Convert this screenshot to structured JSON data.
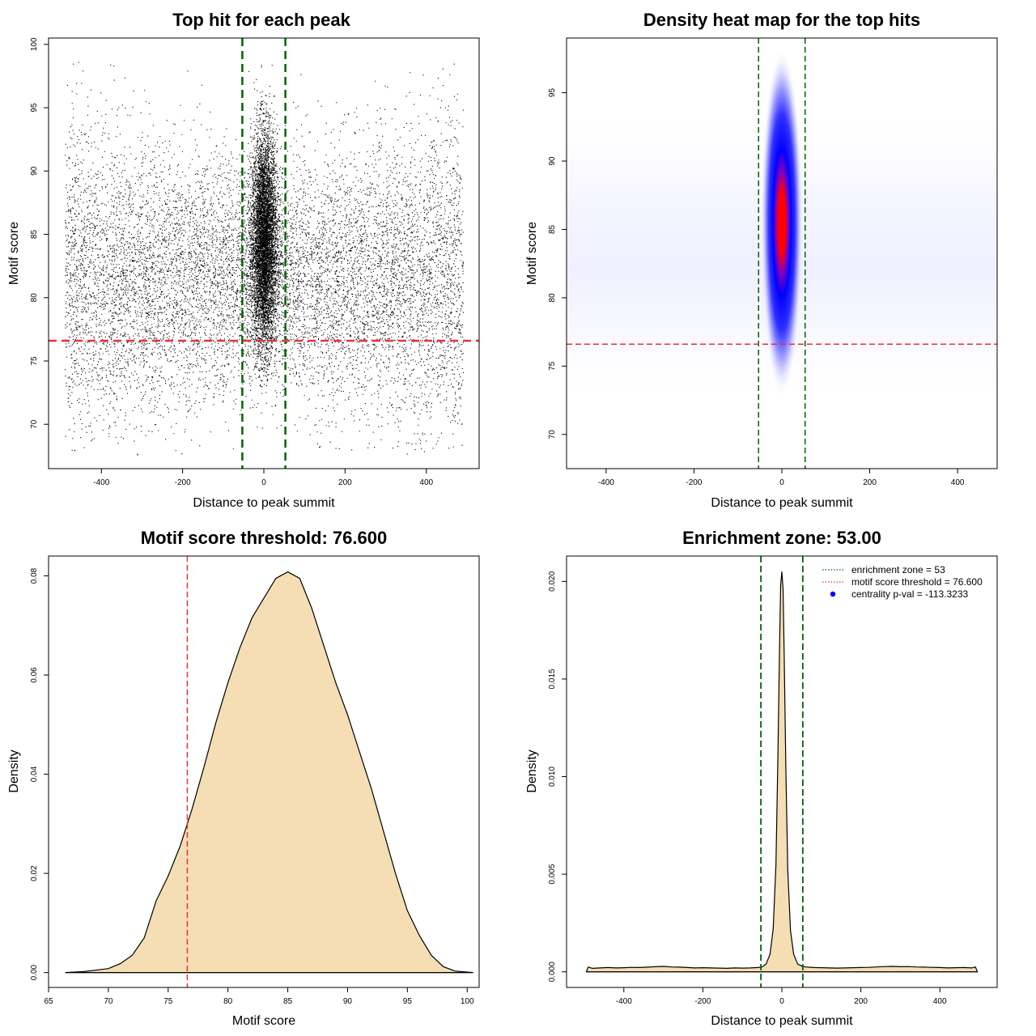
{
  "chart_data": [
    {
      "type": "scatter",
      "title": "Top hit for each peak",
      "xlabel": "Distance to peak summit",
      "ylabel": "Motif score",
      "xlim": [
        -530,
        530
      ],
      "ylim": [
        66.5,
        100.5
      ],
      "xticks": [
        -400,
        -200,
        0,
        200,
        400
      ],
      "yticks": [
        70,
        75,
        80,
        85,
        90,
        95,
        100
      ],
      "vlines": [
        -53,
        53
      ],
      "hline": 76.6,
      "points": {
        "core": {
          "x_center": 0,
          "x_sd": 16,
          "y_center": 84.5,
          "y_sd": 4.2,
          "y_min": 73,
          "y_max": 99
        },
        "background": {
          "x_range": [
            -490,
            490
          ],
          "y_center": 81.5,
          "y_sd": 5.5,
          "y_min": 67.5,
          "y_max": 99
        }
      }
    },
    {
      "type": "heatmap",
      "title": "Density heat map for the top hits",
      "xlabel": "Distance to peak summit",
      "ylabel": "Motif score",
      "xlim": [
        -490,
        490
      ],
      "ylim": [
        67.5,
        99
      ],
      "xticks": [
        -400,
        -200,
        0,
        200,
        400
      ],
      "yticks": [
        70,
        75,
        80,
        85,
        90,
        95
      ],
      "vlines": [
        -53,
        53
      ],
      "hline": 76.6,
      "peak": {
        "x": 0,
        "y": 85.5
      }
    },
    {
      "type": "area",
      "title": "Motif score threshold: 76.600",
      "xlabel": "Motif score",
      "ylabel": "Density",
      "xlim": [
        65,
        101
      ],
      "ylim": [
        -0.003,
        0.084
      ],
      "xticks": [
        65,
        70,
        75,
        80,
        85,
        90,
        95,
        100
      ],
      "yticks": [
        0.0,
        0.02,
        0.04,
        0.06,
        0.08
      ],
      "ytick_labels": [
        "0.00",
        "0.02",
        "0.04",
        "0.06",
        "0.08"
      ],
      "vline": 76.6,
      "fill": "#f5deb3",
      "x": [
        66.4,
        68,
        70,
        71,
        72,
        73,
        74,
        75,
        76,
        77,
        78,
        79,
        80,
        81,
        82,
        83,
        84,
        85,
        86,
        87,
        88,
        89,
        90,
        91,
        92,
        93,
        94,
        95,
        96,
        97,
        98,
        99,
        100.5
      ],
      "y": [
        0.0,
        0.0002,
        0.0008,
        0.0018,
        0.0035,
        0.007,
        0.0145,
        0.0195,
        0.0255,
        0.033,
        0.0415,
        0.0505,
        0.0585,
        0.0655,
        0.0715,
        0.0755,
        0.0795,
        0.0808,
        0.0795,
        0.0735,
        0.066,
        0.0585,
        0.052,
        0.0445,
        0.037,
        0.0285,
        0.02,
        0.0125,
        0.0075,
        0.0035,
        0.0012,
        0.0003,
        0.0
      ]
    },
    {
      "type": "area",
      "title": "Enrichment zone: 53.00",
      "xlabel": "Distance to peak summit",
      "ylabel": "Density",
      "xlim": [
        -545,
        545
      ],
      "ylim": [
        -0.0008,
        0.0213
      ],
      "xticks": [
        -400,
        -200,
        0,
        200,
        400
      ],
      "yticks": [
        0.0,
        0.005,
        0.01,
        0.015,
        0.02
      ],
      "ytick_labels": [
        "0.000",
        "0.005",
        "0.010",
        "0.015",
        "0.020"
      ],
      "vlines": [
        -53,
        53
      ],
      "fill": "#f5deb3",
      "x": [
        -495,
        -490,
        -480,
        -460,
        -440,
        -420,
        -400,
        -380,
        -360,
        -340,
        -320,
        -300,
        -280,
        -260,
        -240,
        -220,
        -200,
        -180,
        -160,
        -140,
        -120,
        -100,
        -80,
        -60,
        -50,
        -40,
        -30,
        -22,
        -15,
        -10,
        -6,
        -3,
        0,
        3,
        6,
        10,
        15,
        22,
        30,
        40,
        50,
        60,
        80,
        100,
        120,
        140,
        160,
        180,
        200,
        220,
        240,
        260,
        280,
        300,
        320,
        340,
        360,
        380,
        400,
        420,
        440,
        460,
        480,
        490,
        495
      ],
      "y": [
        0.0,
        0.00025,
        0.00018,
        0.0002,
        0.00022,
        0.0002,
        0.00021,
        0.00023,
        0.00022,
        0.00024,
        0.00026,
        0.00028,
        0.00025,
        0.00024,
        0.00022,
        0.0002,
        0.00021,
        0.0002,
        0.00019,
        0.00018,
        0.0002,
        0.00019,
        0.0002,
        0.00022,
        0.00025,
        0.0004,
        0.0009,
        0.0022,
        0.0055,
        0.011,
        0.0165,
        0.0198,
        0.0205,
        0.0196,
        0.0162,
        0.0105,
        0.0052,
        0.0021,
        0.0009,
        0.0004,
        0.0003,
        0.00025,
        0.00022,
        0.00021,
        0.0002,
        0.00019,
        0.0002,
        0.00021,
        0.00022,
        0.00023,
        0.00025,
        0.00027,
        0.00028,
        0.00026,
        0.00027,
        0.00025,
        0.00024,
        0.00023,
        0.00022,
        0.0002,
        0.00021,
        0.00022,
        0.0002,
        0.00025,
        0.0
      ]
    }
  ],
  "legend": {
    "items": [
      {
        "label": "enrichment zone = 53",
        "symbol": "dotted-line",
        "color": "#006400"
      },
      {
        "label": "motif score threshold = 76.600",
        "symbol": "dotted-line",
        "color": "#e8303a"
      },
      {
        "label": "centrality p-val = -113.3233",
        "symbol": "dot",
        "color": "#0000ff"
      }
    ]
  },
  "colors": {
    "vline": "#006400",
    "hline": "#e8303a",
    "heat_low": "#ffffff",
    "heat_mid": "#0000ff",
    "heat_high": "#ff0000",
    "fill": "#f5deb3"
  }
}
